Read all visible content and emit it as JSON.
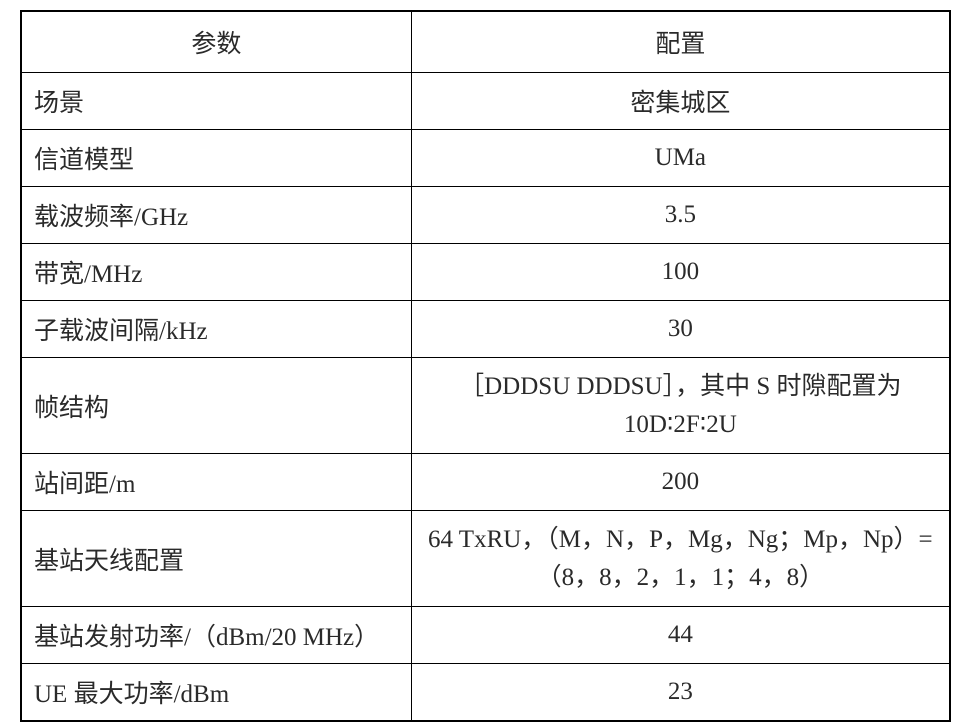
{
  "table": {
    "header": {
      "param": "参数",
      "value": "配置"
    },
    "rows": [
      {
        "param": "场景",
        "value": "密集城区",
        "param_latin": false,
        "value_latin": false,
        "multiline": false
      },
      {
        "param": "信道模型",
        "value": "UMa",
        "param_latin": false,
        "value_latin": true,
        "multiline": false
      },
      {
        "param": "载波频率/GHz",
        "value": "3.5",
        "param_latin": false,
        "value_latin": true,
        "multiline": false
      },
      {
        "param": "带宽/MHz",
        "value": "100",
        "param_latin": false,
        "value_latin": true,
        "multiline": false
      },
      {
        "param": "子载波间隔/kHz",
        "value": "30",
        "param_latin": false,
        "value_latin": true,
        "multiline": false
      },
      {
        "param": "帧结构",
        "value": "［DDDSU DDDSU］，其中 S 时隙配置为 10D∶2F∶2U",
        "param_latin": false,
        "value_latin": false,
        "multiline": true
      },
      {
        "param": "站间距/m",
        "value": "200",
        "param_latin": false,
        "value_latin": true,
        "multiline": false
      },
      {
        "param": "基站天线配置",
        "value": "64 TxRU，（M，N，P，Mg，Ng；Mp，Np）=（8，8，2，1，1；4，8）",
        "param_latin": false,
        "value_latin": true,
        "multiline": true
      },
      {
        "param": "基站发射功率/（dBm/20 MHz）",
        "value": "44",
        "param_latin": false,
        "value_latin": true,
        "multiline": false
      },
      {
        "param": "UE 最大功率/dBm",
        "value": "23",
        "param_latin": false,
        "value_latin": true,
        "multiline": false
      }
    ]
  },
  "styling": {
    "table_border_color": "#000000",
    "table_outer_border_width": 2.5,
    "table_inner_border_width": 1,
    "background_color": "#ffffff",
    "text_color": "#2a2a2a",
    "font_size": 25,
    "col_param_width_pct": 42,
    "col_value_width_pct": 58
  }
}
